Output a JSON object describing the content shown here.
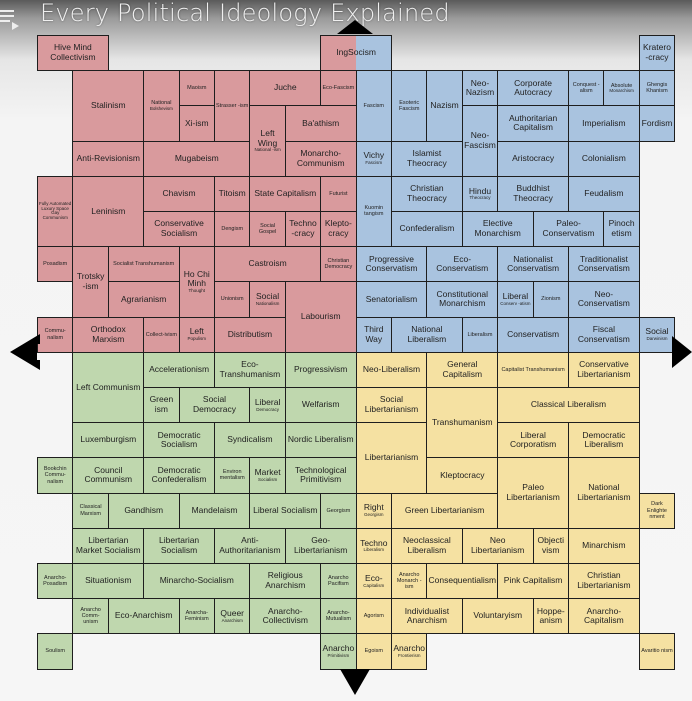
{
  "header": {
    "title": "Every Political Ideology Explained",
    "menu_icon": "playlist-icon"
  },
  "colors": {
    "authleft": "#d99a9d",
    "authright": "#a9c3df",
    "libleft": "#bfd7ae",
    "libright": "#f5e1a2"
  },
  "ideologies": [
    {
      "label": "Hive Mind Collectivism"
    },
    {
      "label": "Stalinism"
    },
    {
      "label": "National",
      "sub": "Bolshevism"
    },
    {
      "label": "Maoism"
    },
    {
      "label": "Xi-ism"
    },
    {
      "label": "Strasser -ism"
    },
    {
      "label": "Juche"
    },
    {
      "label": "Eco-Fascism"
    },
    {
      "label": "Left Wing",
      "sub": "National -ism"
    },
    {
      "label": "Ba'athism"
    },
    {
      "label": "Anti-Revisionism"
    },
    {
      "label": "Mugabeism"
    },
    {
      "label": "Monarcho-Communism"
    },
    {
      "label": "",
      "sub": "Fully Automated Luxury Space Gay Communism"
    },
    {
      "label": "Leninism"
    },
    {
      "label": "Chavism"
    },
    {
      "label": "Titoism"
    },
    {
      "label": "State Capitalism"
    },
    {
      "label": "Futurist"
    },
    {
      "label": "Conservative Socialism"
    },
    {
      "label": "Dengism"
    },
    {
      "label": "Social Gospel"
    },
    {
      "label": "Techno -cracy"
    },
    {
      "label": "Klepto-cracy"
    },
    {
      "label": "Posadism"
    },
    {
      "label": "Trotsky -ism"
    },
    {
      "label": "Socialist Transhumanism"
    },
    {
      "label": "Ho Chi Minh",
      "sub": "Thought"
    },
    {
      "label": "Castroism"
    },
    {
      "label": "Christian Democracy"
    },
    {
      "label": "Agrarianism"
    },
    {
      "label": "Unionism"
    },
    {
      "label": "Social",
      "sub": "Nationalism"
    },
    {
      "label": "Labourism"
    },
    {
      "label": "Commu-nalism"
    },
    {
      "label": "Orthodox Marxism"
    },
    {
      "label": "Collect-ivism"
    },
    {
      "label": "Left",
      "sub": "Populism"
    },
    {
      "label": "Distributism"
    },
    {
      "label": "IngSocism"
    },
    {
      "label": "Kratero -cracy"
    },
    {
      "label": "Fascism"
    },
    {
      "label": "Esoteric Fascism"
    },
    {
      "label": "Nazism"
    },
    {
      "label": "Neo-Nazism"
    },
    {
      "label": "Corporate Autocracy"
    },
    {
      "label": "Conquest -alism"
    },
    {
      "label": "Absolute",
      "sub": "Monarchism"
    },
    {
      "label": "Ghengis Khanism"
    },
    {
      "label": "Neo-Fascism"
    },
    {
      "label": "Authoritarian Capitalism"
    },
    {
      "label": "Imperialism"
    },
    {
      "label": "Fordism"
    },
    {
      "label": "Vichy",
      "sub": "Fascism"
    },
    {
      "label": "Islamist Theocracy"
    },
    {
      "label": "Aristocracy"
    },
    {
      "label": "Colonialism"
    },
    {
      "label": "Kuomin tangism"
    },
    {
      "label": "Christian Theocracy"
    },
    {
      "label": "Hindu",
      "sub": "Theocracy"
    },
    {
      "label": "Buddhist Theocracy"
    },
    {
      "label": "Feudalism"
    },
    {
      "label": "Confederalism"
    },
    {
      "label": "Elective Monarchism"
    },
    {
      "label": "Paleo-Conservatism"
    },
    {
      "label": "Pinoch etism"
    },
    {
      "label": "Progressive Conservatism"
    },
    {
      "label": "Eco-Conservatism"
    },
    {
      "label": "Nationalist Conservatism"
    },
    {
      "label": "Traditionalist Conservatism"
    },
    {
      "label": "Senatorialism"
    },
    {
      "label": "Constitutional Monarchism"
    },
    {
      "label": "Liberal",
      "sub": "Conserv -atism"
    },
    {
      "label": "Zionism"
    },
    {
      "label": "Neo-Conservatism"
    },
    {
      "label": "Third Way"
    },
    {
      "label": "National Liberalism"
    },
    {
      "label": "Liberalism"
    },
    {
      "label": "Conservatism"
    },
    {
      "label": "Fiscal Conservatism"
    },
    {
      "label": "Social",
      "sub": "Darwinism"
    },
    {
      "label": "Left Communism"
    },
    {
      "label": "Accelerationism"
    },
    {
      "label": "Eco-Transhumanism"
    },
    {
      "label": "Progressivism"
    },
    {
      "label": "Green ism"
    },
    {
      "label": "Social Democracy"
    },
    {
      "label": "Liberal",
      "sub": "Democracy"
    },
    {
      "label": "Welfarism"
    },
    {
      "label": "Luxemburgism"
    },
    {
      "label": "Democratic Socialism"
    },
    {
      "label": "Syndicalism"
    },
    {
      "label": "Nordic Liberalism"
    },
    {
      "label": "Bookchin Commu-nalism"
    },
    {
      "label": "Council Communism"
    },
    {
      "label": "Democratic Confederalism"
    },
    {
      "label": "Environ mentalism"
    },
    {
      "label": "Market",
      "sub": "Socialism"
    },
    {
      "label": "Technological Primitivism"
    },
    {
      "label": "Classical Marxism"
    },
    {
      "label": "Gandhism"
    },
    {
      "label": "Mandelaism"
    },
    {
      "label": "Liberal Socialism"
    },
    {
      "label": "Georgism"
    },
    {
      "label": "Libertarian Market Socialism"
    },
    {
      "label": "Libertarian Socialism"
    },
    {
      "label": "Anti-Authoritarianism"
    },
    {
      "label": "Geo-Libertarianism"
    },
    {
      "label": "Anarcho-Posadism"
    },
    {
      "label": "Situationism"
    },
    {
      "label": "Minarcho-Socialism"
    },
    {
      "label": "Religious Anarchism"
    },
    {
      "label": "Anarcho Pacifism"
    },
    {
      "label": "Anarcho Comm-unism"
    },
    {
      "label": "Eco-Anarchism"
    },
    {
      "label": "Anarcha-Feminism"
    },
    {
      "label": "Queer",
      "sub": "Anarchism"
    },
    {
      "label": "Anarcho-Collectivism"
    },
    {
      "label": "Anarcho-Mutualism"
    },
    {
      "label": "Soulism"
    },
    {
      "label": "Anarcho",
      "sub": "Primitivism"
    },
    {
      "label": "Neo-Liberalism"
    },
    {
      "label": "General Capitalism"
    },
    {
      "label": "Capitalist Transhumanism"
    },
    {
      "label": "Conservative Libertarianism"
    },
    {
      "label": "Social Libertarianism"
    },
    {
      "label": "Transhumanism"
    },
    {
      "label": "Classical Liberalism"
    },
    {
      "label": "Libertarianism"
    },
    {
      "label": "Liberal Corporatism"
    },
    {
      "label": "Democratic Liberalism"
    },
    {
      "label": "Kleptocracy"
    },
    {
      "label": "Paleo Libertarianism"
    },
    {
      "label": "National Libertarianism"
    },
    {
      "label": "Right",
      "sub": "Georgism"
    },
    {
      "label": "Green Libertarianism"
    },
    {
      "label": "Dark Enlighte nment"
    },
    {
      "label": "Techno",
      "sub": "Liberalism"
    },
    {
      "label": "Neoclassical Liberalism"
    },
    {
      "label": "Neo Libertarianism"
    },
    {
      "label": "Objecti vism"
    },
    {
      "label": "Minarchism"
    },
    {
      "label": "Eco-",
      "sub": "Capitalism"
    },
    {
      "label": "Anarcho Monarch -ism"
    },
    {
      "label": "Consequentialism"
    },
    {
      "label": "Pink Capitalism"
    },
    {
      "label": "Christian Libertarianism"
    },
    {
      "label": "Agorism"
    },
    {
      "label": "Individualist Anarchism"
    },
    {
      "label": "Voluntaryism"
    },
    {
      "label": "Hoppe-anism"
    },
    {
      "label": "Anarcho-Capitalism"
    },
    {
      "label": "Egoism"
    },
    {
      "label": "Anarcho",
      "sub": "Frontierism"
    },
    {
      "label": "Avaritio nism"
    }
  ]
}
